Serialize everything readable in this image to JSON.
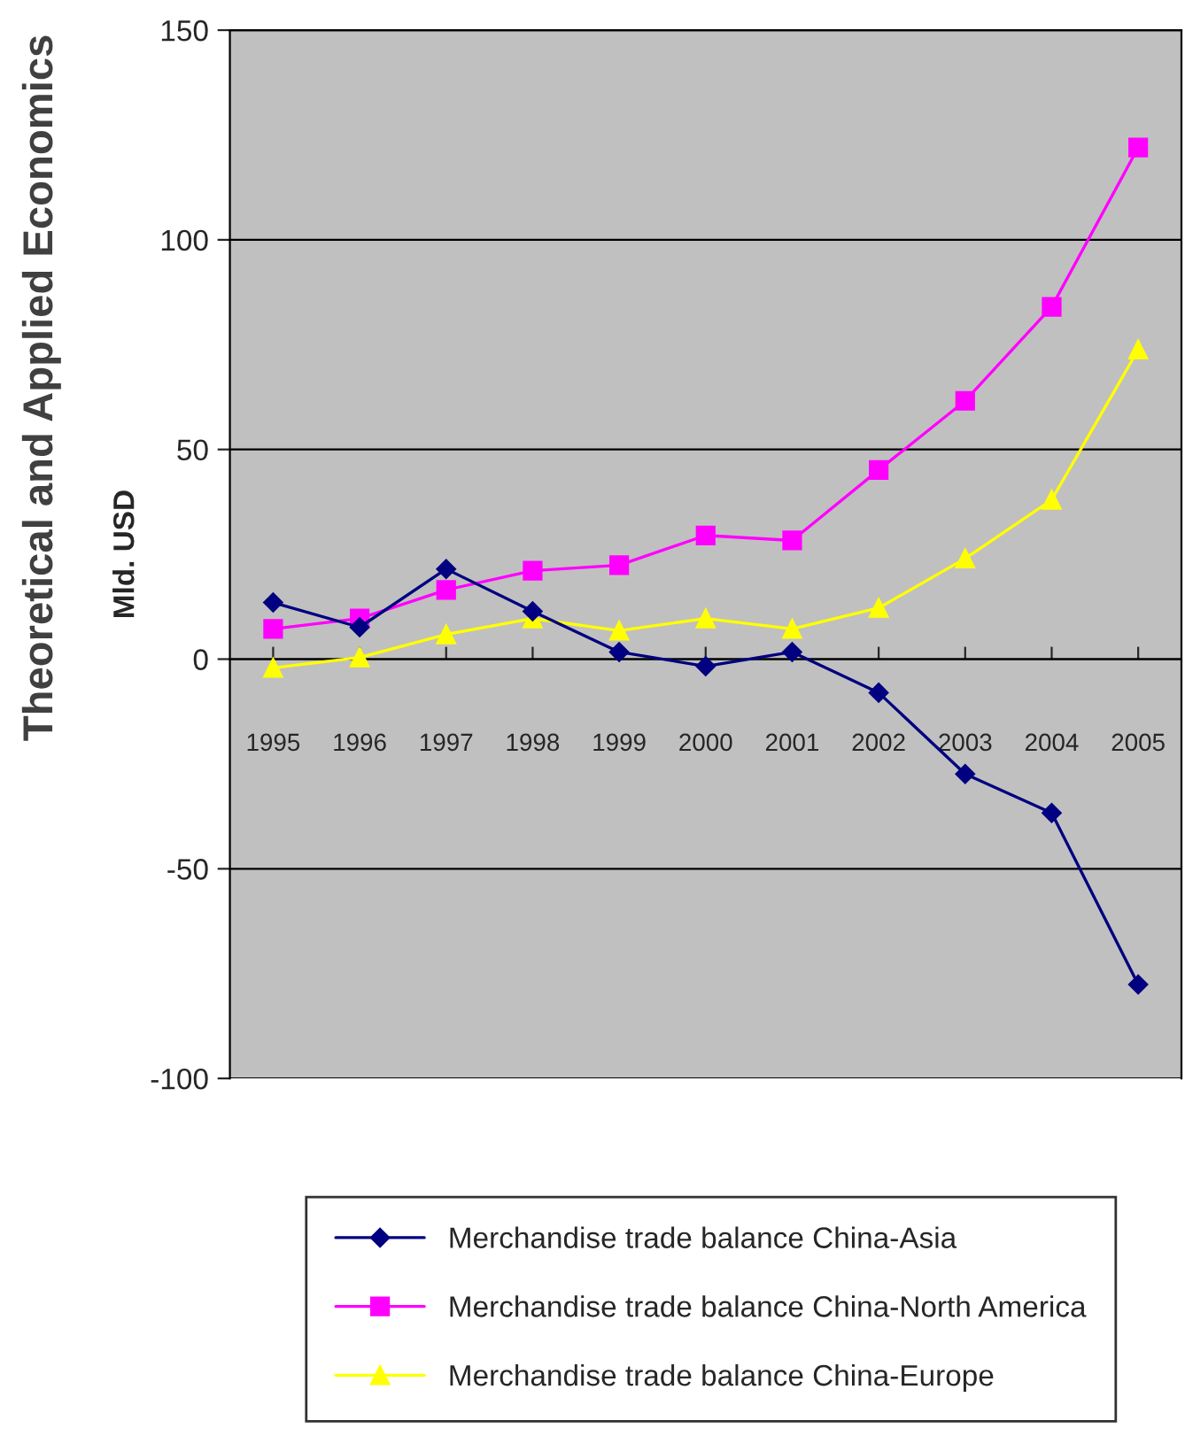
{
  "chart_data": {
    "type": "line",
    "ylabel": "Mld. USD",
    "annotations": [
      "Theoretical and Applied Economics"
    ],
    "categories": [
      "1995",
      "1996",
      "1997",
      "1998",
      "1999",
      "2000",
      "2001",
      "2002",
      "2003",
      "2004",
      "2005"
    ],
    "series": [
      {
        "name": "Merchandise trade balance China-Asia",
        "color": "#000080",
        "marker": "diamond",
        "values": [
          13.5,
          7.6,
          21.5,
          11.4,
          1.7,
          -1.7,
          1.7,
          -8,
          -27.4,
          -36.7,
          -77.6
        ]
      },
      {
        "name": "Merchandise trade balance China-North America",
        "color": "#ff00ff",
        "marker": "square",
        "values": [
          7.2,
          9.7,
          16.5,
          21.1,
          22.4,
          29.5,
          28.3,
          45.1,
          61.6,
          84,
          122
        ]
      },
      {
        "name": "Merchandise trade balance China-Europe",
        "color": "#ffff00",
        "marker": "triangle",
        "values": [
          -2.1,
          0.4,
          5.9,
          9.7,
          6.8,
          9.7,
          7.2,
          12.2,
          24,
          38,
          73.8
        ]
      }
    ],
    "ylim": [
      -100,
      150
    ],
    "yticks": [
      -100,
      -50,
      0,
      50,
      100,
      150
    ],
    "grid": "y",
    "legend": "bottom"
  }
}
